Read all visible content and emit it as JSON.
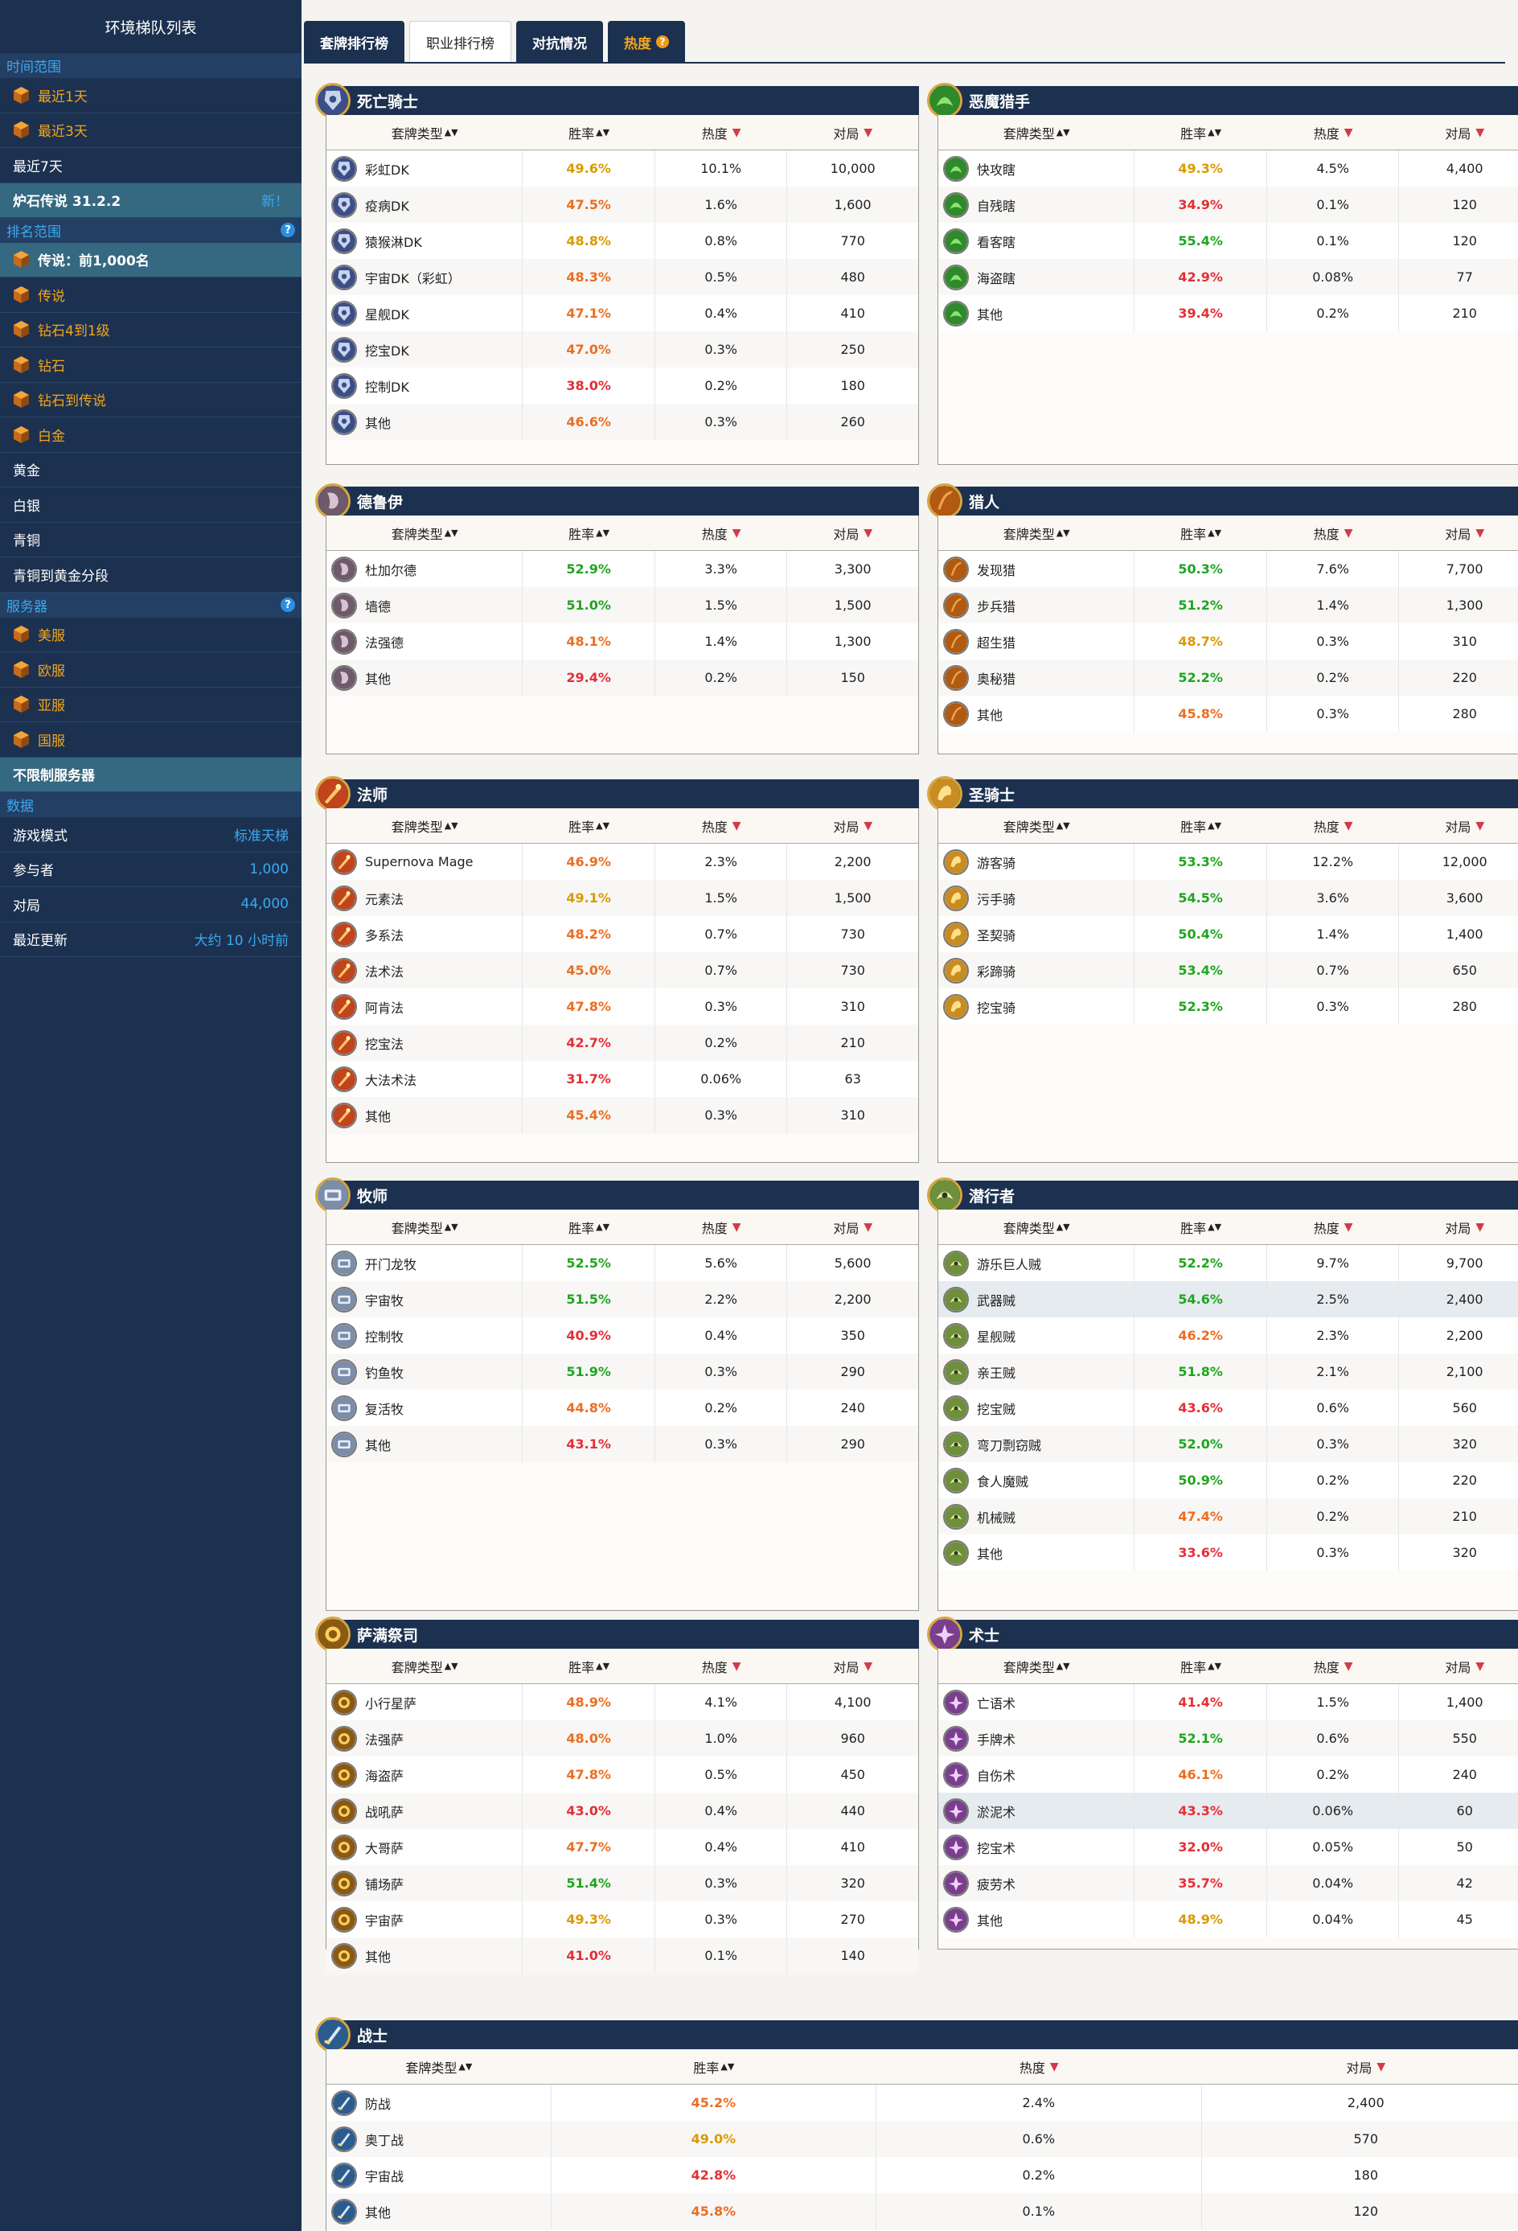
{
  "sidebar": {
    "title": "环境梯队列表",
    "time_section": "时间范围",
    "time_items": [
      {
        "label": "最近1天",
        "style": "gold"
      },
      {
        "label": "最近3天",
        "style": "gold"
      },
      {
        "label": "最近7天",
        "style": "plain"
      }
    ],
    "patch": {
      "label": "炉石传说 31.2.2",
      "badge": "新！"
    },
    "rank_section": "排名范围",
    "rank_items": [
      {
        "label": "传说：前1,000名",
        "style": "sel"
      },
      {
        "label": "传说",
        "style": "gold"
      },
      {
        "label": "钻石4到1级",
        "style": "gold"
      },
      {
        "label": "钻石",
        "style": "gold"
      },
      {
        "label": "钻石到传说",
        "style": "gold"
      },
      {
        "label": "白金",
        "style": "gold"
      },
      {
        "label": "黄金",
        "style": "plain"
      },
      {
        "label": "白银",
        "style": "plain"
      },
      {
        "label": "青铜",
        "style": "plain"
      },
      {
        "label": "青铜到黄金分段",
        "style": "plain"
      }
    ],
    "server_section": "服务器",
    "server_items": [
      {
        "label": "美服",
        "style": "gold"
      },
      {
        "label": "欧服",
        "style": "gold"
      },
      {
        "label": "亚服",
        "style": "gold"
      },
      {
        "label": "国服",
        "style": "gold"
      },
      {
        "label": "不限制服务器",
        "style": "sel"
      }
    ],
    "data_section": "数据",
    "data_items": [
      {
        "label": "游戏模式",
        "value": "标准天梯"
      },
      {
        "label": "参与者",
        "value": "1,000"
      },
      {
        "label": "对局",
        "value": "44,000"
      },
      {
        "label": "最近更新",
        "value": "大约 10 小时前"
      }
    ]
  },
  "tabs": [
    {
      "label": "套牌排行榜",
      "state": "normal"
    },
    {
      "label": "职业排行榜",
      "state": "active"
    },
    {
      "label": "对抗情况",
      "state": "normal"
    },
    {
      "label": "热度",
      "state": "hot"
    }
  ],
  "columns": {
    "deck": "套牌类型",
    "winrate": "胜率",
    "popularity": "热度",
    "games": "对局"
  },
  "colors": {
    "green": "#1fa51f",
    "yellow": "#d99a00",
    "orange": "#ec6d22",
    "red": "#e42f35",
    "navy": "#1c3150",
    "accent": "#3ba9ef"
  },
  "classes": [
    {
      "name": "死亡骑士",
      "icon": "death-knight-icon",
      "color": "#3b4e86",
      "decks": [
        {
          "name": "彩虹DK",
          "wr": "49.6%",
          "c": "yellow",
          "pop": "10.1%",
          "games": "10,000"
        },
        {
          "name": "疫病DK",
          "wr": "47.5%",
          "c": "orange",
          "pop": "1.6%",
          "games": "1,600"
        },
        {
          "name": "猿猴淋DK",
          "wr": "48.8%",
          "c": "yellow",
          "pop": "0.8%",
          "games": "770"
        },
        {
          "name": "宇宙DK（彩虹）",
          "wr": "48.3%",
          "c": "orange",
          "pop": "0.5%",
          "games": "480"
        },
        {
          "name": "星舰DK",
          "wr": "47.1%",
          "c": "orange",
          "pop": "0.4%",
          "games": "410"
        },
        {
          "name": "挖宝DK",
          "wr": "47.0%",
          "c": "orange",
          "pop": "0.3%",
          "games": "250"
        },
        {
          "name": "控制DK",
          "wr": "38.0%",
          "c": "red",
          "pop": "0.2%",
          "games": "180"
        },
        {
          "name": "其他",
          "wr": "46.6%",
          "c": "orange",
          "pop": "0.3%",
          "games": "260"
        }
      ]
    },
    {
      "name": "恶魔猎手",
      "icon": "demon-hunter-icon",
      "color": "#2f8a2b",
      "decks": [
        {
          "name": "快攻瞎",
          "wr": "49.3%",
          "c": "yellow",
          "pop": "4.5%",
          "games": "4,400"
        },
        {
          "name": "自残瞎",
          "wr": "34.9%",
          "c": "red",
          "pop": "0.1%",
          "games": "120"
        },
        {
          "name": "看客瞎",
          "wr": "55.4%",
          "c": "green",
          "pop": "0.1%",
          "games": "120"
        },
        {
          "name": "海盗瞎",
          "wr": "42.9%",
          "c": "red",
          "pop": "0.08%",
          "games": "77"
        },
        {
          "name": "其他",
          "wr": "39.4%",
          "c": "red",
          "pop": "0.2%",
          "games": "210"
        }
      ]
    },
    {
      "name": "德鲁伊",
      "icon": "druid-icon",
      "color": "#6e5a6a",
      "decks": [
        {
          "name": "杜加尔德",
          "wr": "52.9%",
          "c": "green",
          "pop": "3.3%",
          "games": "3,300"
        },
        {
          "name": "墙德",
          "wr": "51.0%",
          "c": "green",
          "pop": "1.5%",
          "games": "1,500"
        },
        {
          "name": "法强德",
          "wr": "48.1%",
          "c": "orange",
          "pop": "1.4%",
          "games": "1,300"
        },
        {
          "name": "其他",
          "wr": "29.4%",
          "c": "red",
          "pop": "0.2%",
          "games": "150"
        }
      ]
    },
    {
      "name": "猎人",
      "icon": "hunter-icon",
      "color": "#b05a12",
      "decks": [
        {
          "name": "发现猎",
          "wr": "50.3%",
          "c": "green",
          "pop": "7.6%",
          "games": "7,700"
        },
        {
          "name": "步兵猎",
          "wr": "51.2%",
          "c": "green",
          "pop": "1.4%",
          "games": "1,300"
        },
        {
          "name": "超生猎",
          "wr": "48.7%",
          "c": "yellow",
          "pop": "0.3%",
          "games": "310"
        },
        {
          "name": "奥秘猎",
          "wr": "52.2%",
          "c": "green",
          "pop": "0.2%",
          "games": "220"
        },
        {
          "name": "其他",
          "wr": "45.8%",
          "c": "orange",
          "pop": "0.3%",
          "games": "280"
        }
      ]
    },
    {
      "name": "法师",
      "icon": "mage-icon",
      "color": "#c0441c",
      "decks": [
        {
          "name": "Supernova Mage",
          "wr": "46.9%",
          "c": "orange",
          "pop": "2.3%",
          "games": "2,200"
        },
        {
          "name": "元素法",
          "wr": "49.1%",
          "c": "yellow",
          "pop": "1.5%",
          "games": "1,500"
        },
        {
          "name": "多系法",
          "wr": "48.2%",
          "c": "orange",
          "pop": "0.7%",
          "games": "730"
        },
        {
          "name": "法术法",
          "wr": "45.0%",
          "c": "orange",
          "pop": "0.7%",
          "games": "730"
        },
        {
          "name": "阿肯法",
          "wr": "47.8%",
          "c": "orange",
          "pop": "0.3%",
          "games": "310"
        },
        {
          "name": "挖宝法",
          "wr": "42.7%",
          "c": "red",
          "pop": "0.2%",
          "games": "210"
        },
        {
          "name": "大法术法",
          "wr": "31.7%",
          "c": "red",
          "pop": "0.06%",
          "games": "63"
        },
        {
          "name": "其他",
          "wr": "45.4%",
          "c": "orange",
          "pop": "0.3%",
          "games": "310"
        }
      ]
    },
    {
      "name": "圣骑士",
      "icon": "paladin-icon",
      "color": "#c98c22",
      "decks": [
        {
          "name": "游客骑",
          "wr": "53.3%",
          "c": "green",
          "pop": "12.2%",
          "games": "12,000"
        },
        {
          "name": "污手骑",
          "wr": "54.5%",
          "c": "green",
          "pop": "3.6%",
          "games": "3,600"
        },
        {
          "name": "圣契骑",
          "wr": "50.4%",
          "c": "green",
          "pop": "1.4%",
          "games": "1,400"
        },
        {
          "name": "彩蹄骑",
          "wr": "53.4%",
          "c": "green",
          "pop": "0.7%",
          "games": "650"
        },
        {
          "name": "挖宝骑",
          "wr": "52.3%",
          "c": "green",
          "pop": "0.3%",
          "games": "280"
        }
      ]
    },
    {
      "name": "牧师",
      "icon": "priest-icon",
      "color": "#7b8da8",
      "decks": [
        {
          "name": "开门龙牧",
          "wr": "52.5%",
          "c": "green",
          "pop": "5.6%",
          "games": "5,600"
        },
        {
          "name": "宇宙牧",
          "wr": "51.5%",
          "c": "green",
          "pop": "2.2%",
          "games": "2,200"
        },
        {
          "name": "控制牧",
          "wr": "40.9%",
          "c": "red",
          "pop": "0.4%",
          "games": "350"
        },
        {
          "name": "钓鱼牧",
          "wr": "51.9%",
          "c": "green",
          "pop": "0.3%",
          "games": "290"
        },
        {
          "name": "复活牧",
          "wr": "44.8%",
          "c": "orange",
          "pop": "0.2%",
          "games": "240"
        },
        {
          "name": "其他",
          "wr": "43.1%",
          "c": "red",
          "pop": "0.3%",
          "games": "290"
        }
      ]
    },
    {
      "name": "潜行者",
      "icon": "rogue-icon",
      "color": "#6f8f3a",
      "decks": [
        {
          "name": "游乐巨人贼",
          "wr": "52.2%",
          "c": "green",
          "pop": "9.7%",
          "games": "9,700"
        },
        {
          "name": "武器贼",
          "wr": "54.6%",
          "c": "green",
          "pop": "2.5%",
          "games": "2,400",
          "hl": true
        },
        {
          "name": "星舰贼",
          "wr": "46.2%",
          "c": "orange",
          "pop": "2.3%",
          "games": "2,200"
        },
        {
          "name": "亲王贼",
          "wr": "51.8%",
          "c": "green",
          "pop": "2.1%",
          "games": "2,100"
        },
        {
          "name": "挖宝贼",
          "wr": "43.6%",
          "c": "red",
          "pop": "0.6%",
          "games": "560"
        },
        {
          "name": "弯刀剽窃贼",
          "wr": "52.0%",
          "c": "green",
          "pop": "0.3%",
          "games": "320"
        },
        {
          "name": "食人魔贼",
          "wr": "50.9%",
          "c": "green",
          "pop": "0.2%",
          "games": "220"
        },
        {
          "name": "机械贼",
          "wr": "47.4%",
          "c": "orange",
          "pop": "0.2%",
          "games": "210"
        },
        {
          "name": "其他",
          "wr": "33.6%",
          "c": "red",
          "pop": "0.3%",
          "games": "320"
        }
      ]
    },
    {
      "name": "萨满祭司",
      "icon": "shaman-icon",
      "color": "#8a5a14",
      "decks": [
        {
          "name": "小行星萨",
          "wr": "48.9%",
          "c": "orange",
          "pop": "4.1%",
          "games": "4,100"
        },
        {
          "name": "法强萨",
          "wr": "48.0%",
          "c": "orange",
          "pop": "1.0%",
          "games": "960"
        },
        {
          "name": "海盗萨",
          "wr": "47.8%",
          "c": "orange",
          "pop": "0.5%",
          "games": "450"
        },
        {
          "name": "战吼萨",
          "wr": "43.0%",
          "c": "red",
          "pop": "0.4%",
          "games": "440"
        },
        {
          "name": "大哥萨",
          "wr": "47.7%",
          "c": "orange",
          "pop": "0.4%",
          "games": "410"
        },
        {
          "name": "铺场萨",
          "wr": "51.4%",
          "c": "green",
          "pop": "0.3%",
          "games": "320"
        },
        {
          "name": "宇宙萨",
          "wr": "49.3%",
          "c": "yellow",
          "pop": "0.3%",
          "games": "270"
        },
        {
          "name": "其他",
          "wr": "41.0%",
          "c": "red",
          "pop": "0.1%",
          "games": "140"
        }
      ]
    },
    {
      "name": "术士",
      "icon": "warlock-icon",
      "color": "#7a3f8c",
      "decks": [
        {
          "name": "亡语术",
          "wr": "41.4%",
          "c": "red",
          "pop": "1.5%",
          "games": "1,400"
        },
        {
          "name": "手牌术",
          "wr": "52.1%",
          "c": "green",
          "pop": "0.6%",
          "games": "550"
        },
        {
          "name": "自伤术",
          "wr": "46.1%",
          "c": "orange",
          "pop": "0.2%",
          "games": "240"
        },
        {
          "name": "淤泥术",
          "wr": "43.3%",
          "c": "red",
          "pop": "0.06%",
          "games": "60",
          "hl": true
        },
        {
          "name": "挖宝术",
          "wr": "32.0%",
          "c": "red",
          "pop": "0.05%",
          "games": "50"
        },
        {
          "name": "疲劳术",
          "wr": "35.7%",
          "c": "red",
          "pop": "0.04%",
          "games": "42"
        },
        {
          "name": "其他",
          "wr": "48.9%",
          "c": "yellow",
          "pop": "0.04%",
          "games": "45"
        }
      ]
    },
    {
      "name": "战士",
      "icon": "warrior-icon",
      "color": "#2c5c8e",
      "decks": [
        {
          "name": "防战",
          "wr": "45.2%",
          "c": "orange",
          "pop": "2.4%",
          "games": "2,400"
        },
        {
          "name": "奥丁战",
          "wr": "49.0%",
          "c": "yellow",
          "pop": "0.6%",
          "games": "570"
        },
        {
          "name": "宇宙战",
          "wr": "42.8%",
          "c": "red",
          "pop": "0.2%",
          "games": "180"
        },
        {
          "name": "其他",
          "wr": "45.8%",
          "c": "orange",
          "pop": "0.1%",
          "games": "120"
        }
      ]
    }
  ]
}
